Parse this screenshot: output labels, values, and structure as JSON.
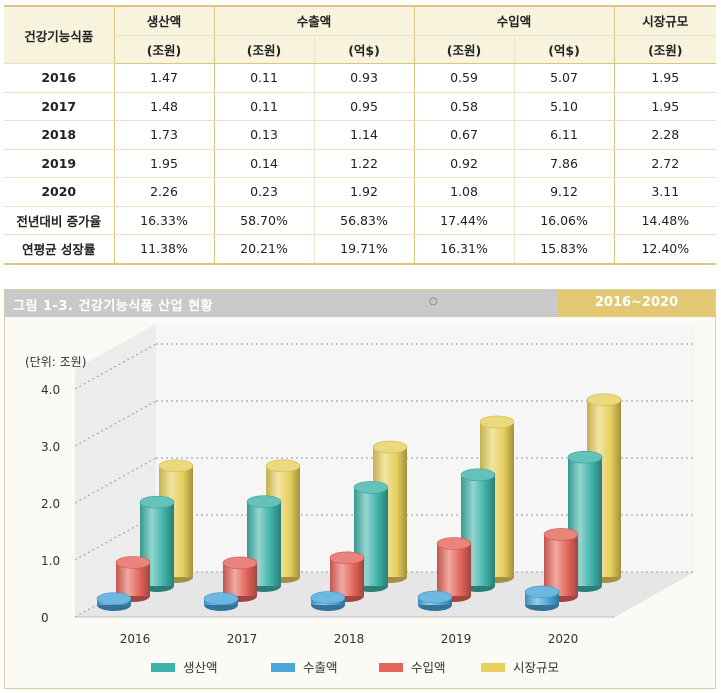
{
  "table": {
    "corner_label": "건강기능식품",
    "group_headers": [
      "생산액",
      "수출액",
      "수입액",
      "시장규모"
    ],
    "unit_headers": [
      "(조원)",
      "(조원)",
      "(억$)",
      "(조원)",
      "(억$)",
      "(조원)"
    ],
    "rows": [
      {
        "label": "2016",
        "values": [
          "1.47",
          "0.11",
          "0.93",
          "0.59",
          "5.07",
          "1.95"
        ]
      },
      {
        "label": "2017",
        "values": [
          "1.48",
          "0.11",
          "0.95",
          "0.58",
          "5.10",
          "1.95"
        ]
      },
      {
        "label": "2018",
        "values": [
          "1.73",
          "0.13",
          "1.14",
          "0.67",
          "6.11",
          "2.28"
        ]
      },
      {
        "label": "2019",
        "values": [
          "1.95",
          "0.14",
          "1.22",
          "0.92",
          "7.86",
          "2.72"
        ]
      },
      {
        "label": "2020",
        "values": [
          "2.26",
          "0.23",
          "1.92",
          "1.08",
          "9.12",
          "3.11"
        ]
      },
      {
        "label": "전년대비 증가율",
        "values": [
          "16.33%",
          "58.70%",
          "56.83%",
          "17.44%",
          "16.06%",
          "14.48%"
        ]
      },
      {
        "label": "연평균 성장률",
        "values": [
          "11.38%",
          "20.21%",
          "19.71%",
          "16.31%",
          "15.83%",
          "12.40%"
        ]
      }
    ]
  },
  "figure": {
    "title": "그림 1-3. 건강기능식품 산업 현황",
    "dot": "○",
    "period": "2016~2020"
  },
  "chart_data": {
    "type": "bar",
    "unit_label": "(단위: 조원)",
    "categories": [
      "2016",
      "2017",
      "2018",
      "2019",
      "2020"
    ],
    "ylim": [
      0,
      4.0
    ],
    "yticks": [
      "0",
      "1.0",
      "2.0",
      "3.0",
      "4.0"
    ],
    "grid": true,
    "legend_position": "bottom",
    "series": [
      {
        "name": "생산액",
        "values": [
          1.47,
          1.48,
          1.73,
          1.95,
          2.26
        ],
        "color": "#3fb3a9"
      },
      {
        "name": "수출액",
        "values": [
          0.11,
          0.11,
          0.13,
          0.14,
          0.23
        ],
        "color": "#4aa5d8"
      },
      {
        "name": "수입액",
        "values": [
          0.59,
          0.58,
          0.67,
          0.92,
          1.08
        ],
        "color": "#e4645a"
      },
      {
        "name": "시장규모",
        "values": [
          1.95,
          1.95,
          2.28,
          2.72,
          3.11
        ],
        "color": "#e6cf5c"
      }
    ]
  }
}
